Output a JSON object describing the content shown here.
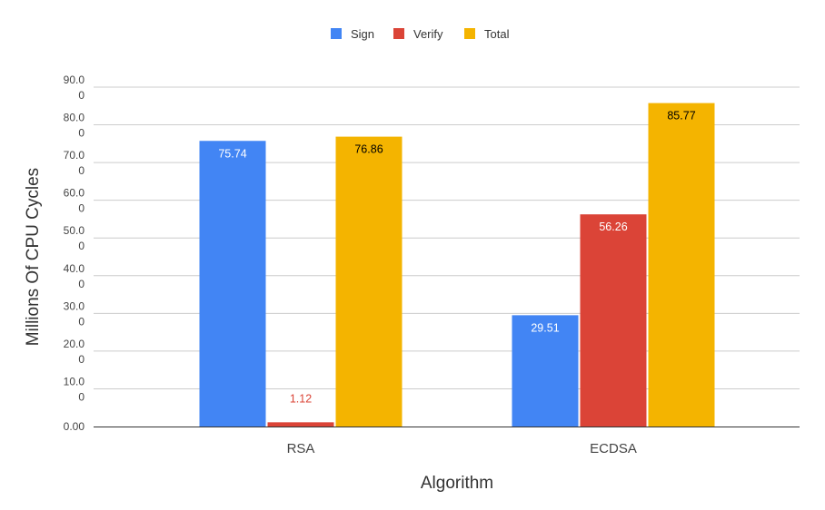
{
  "chart_data": {
    "type": "bar",
    "categories": [
      "RSA",
      "ECDSA"
    ],
    "series": [
      {
        "name": "Sign",
        "color": "#4285F4",
        "values": [
          75.74,
          29.51
        ],
        "labels": [
          "75.74",
          "29.51"
        ],
        "label_color": "#ffffff"
      },
      {
        "name": "Verify",
        "color": "#DB4437",
        "values": [
          1.12,
          56.26
        ],
        "labels": [
          "1.12",
          "56.26"
        ],
        "label_color": "#ffffff"
      },
      {
        "name": "Total",
        "color": "#F4B400",
        "values": [
          76.86,
          85.77
        ],
        "labels": [
          "76.86",
          "85.77"
        ],
        "label_color": "#000000"
      }
    ],
    "title": "",
    "xlabel": "Algorithm",
    "ylabel": "Millions Of CPU Cycles",
    "ylim": [
      0,
      90
    ],
    "yticks": [
      0,
      10,
      20,
      30,
      40,
      50,
      60,
      70,
      80,
      90
    ],
    "ytick_labels": [
      [
        "0.00"
      ],
      [
        "10.0",
        "0"
      ],
      [
        "20.0",
        "0"
      ],
      [
        "30.0",
        "0"
      ],
      [
        "40.0",
        "0"
      ],
      [
        "50.0",
        "0"
      ],
      [
        "60.0",
        "0"
      ],
      [
        "70.0",
        "0"
      ],
      [
        "80.0",
        "0"
      ],
      [
        "90.0",
        "0"
      ]
    ],
    "grid": true,
    "legend_position": "top-center",
    "outside_label_color": "#DB4437"
  }
}
